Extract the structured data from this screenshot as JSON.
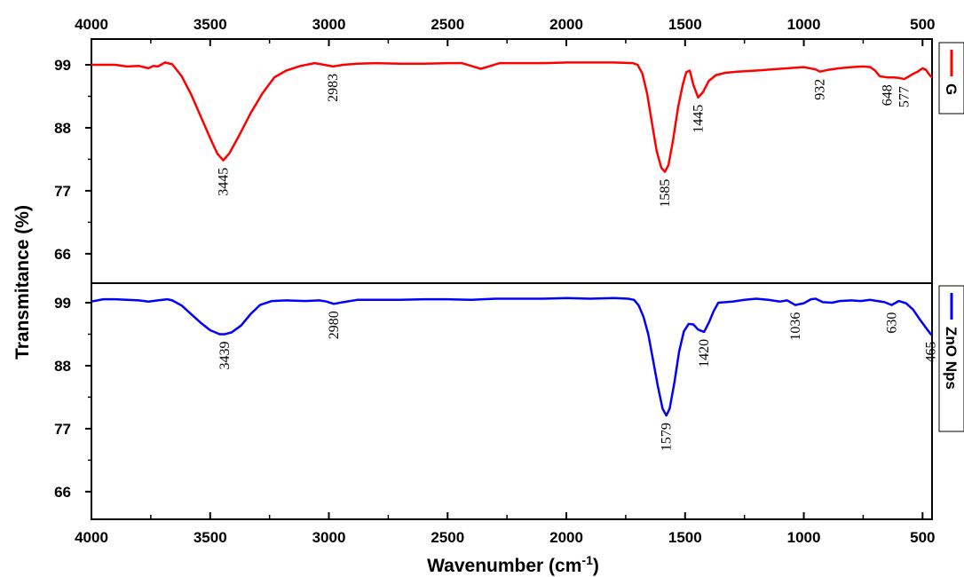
{
  "chart_data": {
    "type": "line",
    "xlabel": "Wavenumber (cm",
    "xlabel_sup": "-1",
    "xlabel_close": ")",
    "ylabel": "Transmitance (%)",
    "xlim": [
      4000,
      460
    ],
    "x_ticks": [
      "4000",
      "3500",
      "3000",
      "2500",
      "2000",
      "1500",
      "1000",
      "500"
    ],
    "x_tick_values": [
      4000,
      3500,
      3000,
      2500,
      2000,
      1500,
      1000,
      500
    ],
    "grid": false,
    "legend_position": "right, rotated",
    "panels": [
      {
        "name": "G",
        "color": "#ff0000",
        "ylim": [
          60,
          101
        ],
        "y_ticks": [
          "99",
          "88",
          "77",
          "66"
        ],
        "y_tick_values": [
          99,
          88,
          77,
          66
        ],
        "points": [
          [
            4000,
            99.0
          ],
          [
            3900,
            99.0
          ],
          [
            3850,
            98.7
          ],
          [
            3800,
            98.8
          ],
          [
            3760,
            98.4
          ],
          [
            3740,
            98.8
          ],
          [
            3720,
            98.7
          ],
          [
            3690,
            99.4
          ],
          [
            3660,
            99.1
          ],
          [
            3620,
            97.0
          ],
          [
            3580,
            93.8
          ],
          [
            3540,
            90.0
          ],
          [
            3500,
            86.2
          ],
          [
            3470,
            83.5
          ],
          [
            3445,
            82.3
          ],
          [
            3420,
            83.5
          ],
          [
            3380,
            86.5
          ],
          [
            3330,
            90.5
          ],
          [
            3280,
            94.0
          ],
          [
            3230,
            96.8
          ],
          [
            3180,
            98.0
          ],
          [
            3120,
            98.8
          ],
          [
            3060,
            99.3
          ],
          [
            3020,
            99.0
          ],
          [
            2983,
            98.7
          ],
          [
            2940,
            99.0
          ],
          [
            2880,
            99.2
          ],
          [
            2800,
            99.3
          ],
          [
            2700,
            99.2
          ],
          [
            2600,
            99.2
          ],
          [
            2500,
            99.3
          ],
          [
            2440,
            99.3
          ],
          [
            2400,
            98.8
          ],
          [
            2360,
            98.3
          ],
          [
            2320,
            98.8
          ],
          [
            2280,
            99.3
          ],
          [
            2200,
            99.3
          ],
          [
            2100,
            99.3
          ],
          [
            2000,
            99.4
          ],
          [
            1900,
            99.4
          ],
          [
            1800,
            99.4
          ],
          [
            1720,
            99.3
          ],
          [
            1700,
            99.0
          ],
          [
            1680,
            97.5
          ],
          [
            1660,
            94.0
          ],
          [
            1640,
            89.0
          ],
          [
            1620,
            84.0
          ],
          [
            1600,
            81.0
          ],
          [
            1585,
            80.3
          ],
          [
            1570,
            81.5
          ],
          [
            1550,
            86.0
          ],
          [
            1530,
            91.5
          ],
          [
            1510,
            95.5
          ],
          [
            1495,
            97.7
          ],
          [
            1480,
            98.0
          ],
          [
            1465,
            95.5
          ],
          [
            1445,
            93.3
          ],
          [
            1425,
            94.2
          ],
          [
            1400,
            96.2
          ],
          [
            1370,
            97.2
          ],
          [
            1330,
            97.6
          ],
          [
            1280,
            97.8
          ],
          [
            1200,
            98.0
          ],
          [
            1100,
            98.3
          ],
          [
            1000,
            98.6
          ],
          [
            950,
            98.2
          ],
          [
            932,
            97.8
          ],
          [
            900,
            98.1
          ],
          [
            850,
            98.4
          ],
          [
            800,
            98.6
          ],
          [
            750,
            98.7
          ],
          [
            720,
            98.6
          ],
          [
            700,
            98.0
          ],
          [
            680,
            97.0
          ],
          [
            648,
            96.8
          ],
          [
            620,
            96.8
          ],
          [
            600,
            96.7
          ],
          [
            577,
            96.5
          ],
          [
            560,
            96.9
          ],
          [
            540,
            97.4
          ],
          [
            520,
            97.8
          ],
          [
            500,
            98.4
          ],
          [
            485,
            98.1
          ],
          [
            470,
            97.2
          ],
          [
            460,
            96.8
          ]
        ],
        "peak_labels": [
          {
            "x": 3445,
            "text": "3445",
            "side": "below"
          },
          {
            "x": 2983,
            "text": "2983",
            "side": "below"
          },
          {
            "x": 1585,
            "text": "1585",
            "side": "below"
          },
          {
            "x": 1445,
            "text": "1445",
            "side": "below"
          },
          {
            "x": 932,
            "text": "932",
            "side": "below"
          },
          {
            "x": 648,
            "text": "648",
            "side": "below"
          },
          {
            "x": 577,
            "text": "577",
            "side": "below"
          }
        ]
      },
      {
        "name": "ZnO Nps",
        "color": "#0000ff",
        "ylim": [
          60,
          101
        ],
        "y_ticks": [
          "99",
          "88",
          "77",
          "66"
        ],
        "y_tick_values": [
          99,
          88,
          77,
          66
        ],
        "points": [
          [
            4000,
            99.2
          ],
          [
            3950,
            99.6
          ],
          [
            3900,
            99.6
          ],
          [
            3850,
            99.5
          ],
          [
            3800,
            99.4
          ],
          [
            3760,
            99.2
          ],
          [
            3720,
            99.4
          ],
          [
            3680,
            99.6
          ],
          [
            3660,
            99.4
          ],
          [
            3620,
            98.5
          ],
          [
            3580,
            97.0
          ],
          [
            3540,
            95.5
          ],
          [
            3500,
            94.2
          ],
          [
            3460,
            93.5
          ],
          [
            3439,
            93.5
          ],
          [
            3410,
            93.8
          ],
          [
            3370,
            95.0
          ],
          [
            3330,
            97.0
          ],
          [
            3290,
            98.6
          ],
          [
            3240,
            99.3
          ],
          [
            3180,
            99.4
          ],
          [
            3100,
            99.3
          ],
          [
            3040,
            99.4
          ],
          [
            3010,
            99.2
          ],
          [
            2980,
            98.8
          ],
          [
            2940,
            99.1
          ],
          [
            2880,
            99.5
          ],
          [
            2800,
            99.5
          ],
          [
            2700,
            99.5
          ],
          [
            2600,
            99.6
          ],
          [
            2500,
            99.6
          ],
          [
            2400,
            99.5
          ],
          [
            2300,
            99.7
          ],
          [
            2200,
            99.7
          ],
          [
            2100,
            99.7
          ],
          [
            2000,
            99.8
          ],
          [
            1900,
            99.7
          ],
          [
            1800,
            99.8
          ],
          [
            1740,
            99.7
          ],
          [
            1715,
            99.5
          ],
          [
            1695,
            98.5
          ],
          [
            1675,
            96.5
          ],
          [
            1655,
            93.5
          ],
          [
            1635,
            89.0
          ],
          [
            1615,
            84.5
          ],
          [
            1595,
            80.5
          ],
          [
            1579,
            79.3
          ],
          [
            1565,
            80.5
          ],
          [
            1545,
            85.0
          ],
          [
            1525,
            90.5
          ],
          [
            1505,
            94.0
          ],
          [
            1485,
            95.3
          ],
          [
            1465,
            95.2
          ],
          [
            1445,
            94.3
          ],
          [
            1420,
            93.9
          ],
          [
            1400,
            95.5
          ],
          [
            1380,
            97.5
          ],
          [
            1360,
            99.0
          ],
          [
            1300,
            99.2
          ],
          [
            1250,
            99.5
          ],
          [
            1200,
            99.7
          ],
          [
            1150,
            99.5
          ],
          [
            1100,
            99.2
          ],
          [
            1070,
            99.4
          ],
          [
            1036,
            98.6
          ],
          [
            1000,
            98.9
          ],
          [
            970,
            99.6
          ],
          [
            950,
            99.7
          ],
          [
            920,
            99.1
          ],
          [
            880,
            99.0
          ],
          [
            850,
            99.3
          ],
          [
            800,
            99.4
          ],
          [
            760,
            99.3
          ],
          [
            720,
            99.5
          ],
          [
            690,
            99.3
          ],
          [
            660,
            99.1
          ],
          [
            630,
            98.6
          ],
          [
            600,
            99.3
          ],
          [
            570,
            98.9
          ],
          [
            540,
            97.8
          ],
          [
            510,
            96.0
          ],
          [
            480,
            94.3
          ],
          [
            465,
            93.5
          ],
          [
            460,
            93.3
          ]
        ],
        "peak_labels": [
          {
            "x": 3439,
            "text": "3439",
            "side": "below"
          },
          {
            "x": 2980,
            "text": "2980",
            "side": "below"
          },
          {
            "x": 1579,
            "text": "1579",
            "side": "below"
          },
          {
            "x": 1420,
            "text": "1420",
            "side": "below"
          },
          {
            "x": 1036,
            "text": "1036",
            "side": "below"
          },
          {
            "x": 630,
            "text": "630",
            "side": "below"
          },
          {
            "x": 465,
            "text": "465",
            "side": "below"
          }
        ]
      }
    ]
  }
}
